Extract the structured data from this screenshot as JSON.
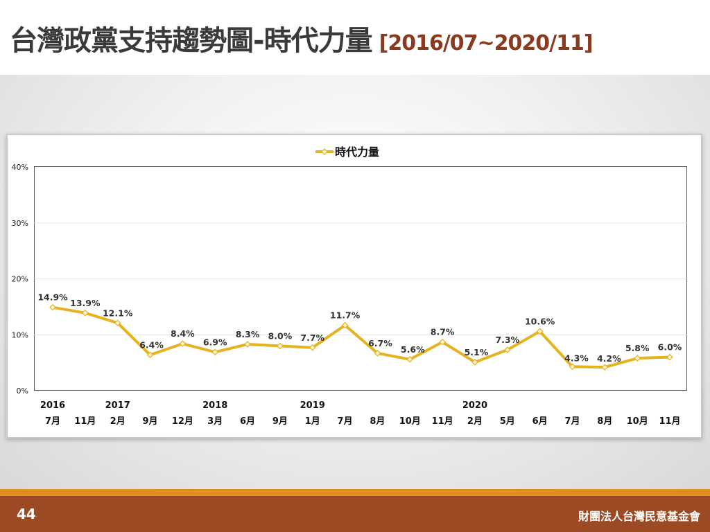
{
  "slide": {
    "title": "台灣政黨支持趨勢圖-時代力量",
    "date_range": "[2016/07~2020/11]",
    "page_number": "44",
    "organization": "財團法人台灣民意基金會"
  },
  "colors": {
    "series": "#e6b21f",
    "title_range": "#8a3a1e",
    "footer": "#9c4a24",
    "footer_strip": "#e1901f"
  },
  "chart_data": {
    "type": "line",
    "legend": {
      "position": "top-center",
      "entries": [
        "時代力量"
      ]
    },
    "series": [
      {
        "name": "時代力量",
        "values": [
          14.9,
          13.9,
          12.1,
          6.4,
          8.4,
          6.9,
          8.3,
          8.0,
          7.7,
          11.7,
          6.7,
          5.6,
          8.7,
          5.1,
          7.3,
          10.6,
          4.3,
          4.2,
          5.8,
          6.0
        ]
      }
    ],
    "data_labels": [
      "14.9%",
      "13.9%",
      "12.1%",
      "6.4%",
      "8.4%",
      "6.9%",
      "8.3%",
      "8.0%",
      "7.7%",
      "11.7%",
      "6.7%",
      "5.6%",
      "8.7%",
      "5.1%",
      "7.3%",
      "10.6%",
      "4.3%",
      "4.2%",
      "5.8%",
      "6.0%"
    ],
    "x_month_labels": [
      "7月",
      "11月",
      "2月",
      "9月",
      "12月",
      "3月",
      "6月",
      "9月",
      "1月",
      "7月",
      "8月",
      "10月",
      "11月",
      "2月",
      "5月",
      "6月",
      "7月",
      "8月",
      "10月",
      "11月"
    ],
    "x_year_labels": [
      "2016",
      "",
      "2017",
      "",
      "",
      "2018",
      "",
      "",
      "2019",
      "",
      "",
      "",
      "",
      "2020",
      "",
      "",
      "",
      "",
      "",
      ""
    ],
    "y_ticks": [
      "0%",
      "10%",
      "20%",
      "30%",
      "40%"
    ],
    "ylim": [
      0,
      40
    ],
    "grid": true
  }
}
